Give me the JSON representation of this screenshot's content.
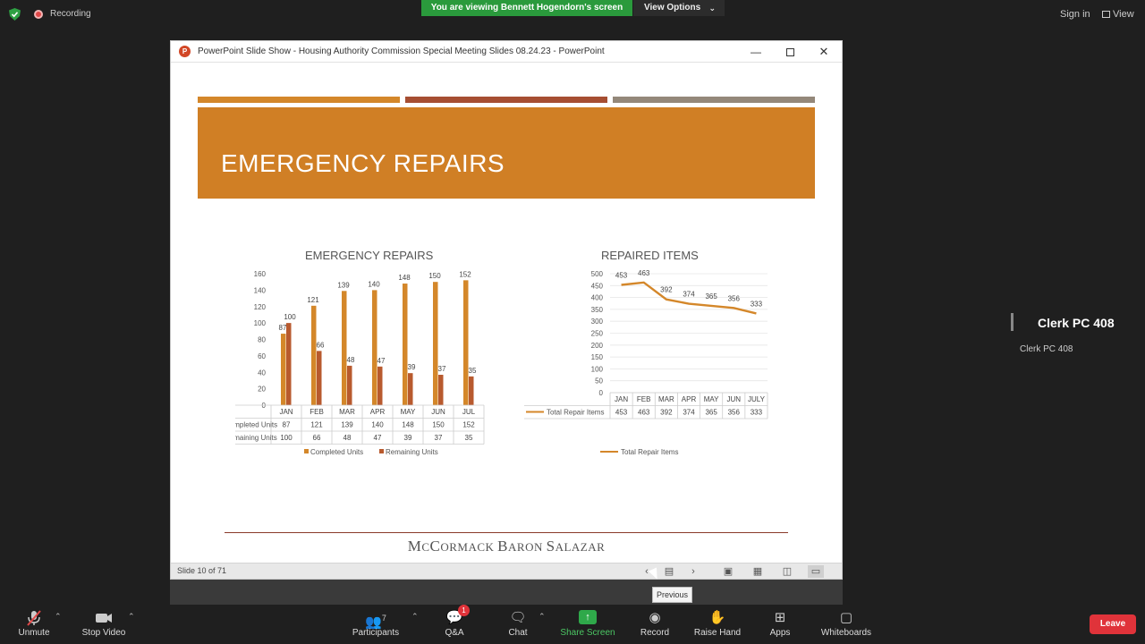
{
  "top": {
    "recording_label": "Recording",
    "viewing_banner": "You are viewing Bennett Hogendorn's screen",
    "view_options": "View Options",
    "sign_in": "Sign in",
    "view": "View"
  },
  "ppt": {
    "window_title": "PowerPoint Slide Show  -  Housing Authority Commission Special Meeting Slides 08.24.23 - PowerPoint",
    "slide_heading": "EMERGENCY REPAIRS",
    "status": "Slide 10 of 71",
    "tooltip": "Previous",
    "footer_brand_parts": [
      "M",
      "C",
      "C",
      "ORMACK ",
      "B",
      "ARON ",
      "S",
      "ALAZAR"
    ]
  },
  "chart_data": [
    {
      "type": "bar",
      "title": "EMERGENCY REPAIRS",
      "categories": [
        "JAN",
        "FEB",
        "MAR",
        "APR",
        "MAY",
        "JUN",
        "JUL"
      ],
      "series": [
        {
          "name": "Completed Units",
          "values": [
            87,
            121,
            139,
            140,
            148,
            150,
            152
          ],
          "color": "#d4872a"
        },
        {
          "name": "Remaining Units",
          "values": [
            100,
            66,
            48,
            47,
            39,
            37,
            35
          ],
          "color": "#b85a2e"
        }
      ],
      "ylim": [
        0,
        160
      ],
      "yticks": [
        0,
        20,
        40,
        60,
        80,
        100,
        120,
        140,
        160
      ],
      "data_table": true,
      "legend": "bottom"
    },
    {
      "type": "line",
      "title": "REPAIRED ITEMS",
      "categories": [
        "JAN",
        "FEB",
        "MAR",
        "APR",
        "MAY",
        "JUN",
        "JULY"
      ],
      "series": [
        {
          "name": "Total Repair Items",
          "values": [
            453,
            463,
            392,
            374,
            365,
            356,
            333
          ],
          "color": "#d4872a"
        }
      ],
      "ylim": [
        0,
        500
      ],
      "yticks": [
        0,
        50,
        100,
        150,
        200,
        250,
        300,
        350,
        400,
        450,
        500
      ],
      "data_table": true,
      "legend": "bottom"
    }
  ],
  "participant": {
    "name_large": "Clerk PC 408",
    "name_small": "Clerk PC 408"
  },
  "toolbar": {
    "unmute": "Unmute",
    "stop_video": "Stop Video",
    "participants": "Participants",
    "participants_count": "7",
    "qa": "Q&A",
    "qa_badge": "1",
    "chat": "Chat",
    "share_screen": "Share Screen",
    "record": "Record",
    "raise_hand": "Raise Hand",
    "apps": "Apps",
    "whiteboards": "Whiteboards",
    "leave": "Leave"
  }
}
